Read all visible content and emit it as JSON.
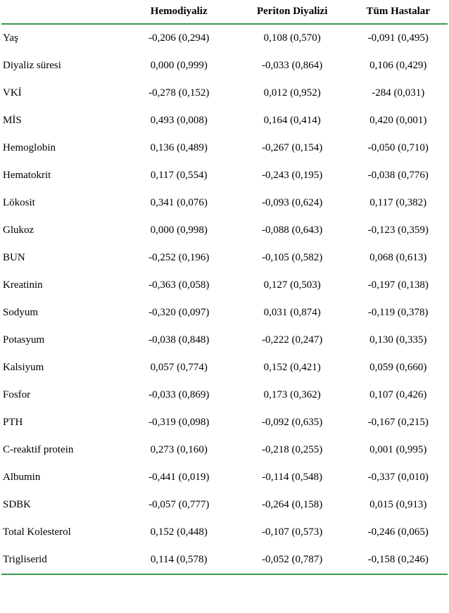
{
  "headers": {
    "col1": "Hemodiyaliz",
    "col2": "Periton Diyalizi",
    "col3": "Tüm Hastalar"
  },
  "rows": [
    {
      "label": "Yaş",
      "c1": "-0,206 (0,294)",
      "c2": "0,108 (0,570)",
      "c3": "-0,091 (0,495)"
    },
    {
      "label": "Diyaliz süresi",
      "c1": "0,000 (0,999)",
      "c2": "-0,033 (0,864)",
      "c3": "0,106 (0,429)"
    },
    {
      "label": "VKİ",
      "c1": "-0,278 (0,152)",
      "c2": "0,012 (0,952)",
      "c3": "-284 (0,031)"
    },
    {
      "label": "MİS",
      "c1": "0,493 (0,008)",
      "c2": "0,164 (0,414)",
      "c3": "0,420 (0,001)"
    },
    {
      "label": "Hemoglobin",
      "c1": "0,136 (0,489)",
      "c2": "-0,267 (0,154)",
      "c3": "-0,050 (0,710)"
    },
    {
      "label": "Hematokrit",
      "c1": "0,117 (0,554)",
      "c2": "-0,243 (0,195)",
      "c3": "-0,038 (0,776)"
    },
    {
      "label": "Lökosit",
      "c1": "0,341 (0,076)",
      "c2": "-0,093 (0,624)",
      "c3": "0,117 (0,382)"
    },
    {
      "label": "Glukoz",
      "c1": "0,000 (0,998)",
      "c2": "-0,088 (0,643)",
      "c3": "-0,123 (0,359)"
    },
    {
      "label": "BUN",
      "c1": "-0,252 (0,196)",
      "c2": "-0,105 (0,582)",
      "c3": "0,068 (0,613)"
    },
    {
      "label": "Kreatinin",
      "c1": "-0,363 (0,058)",
      "c2": "0,127 (0,503)",
      "c3": "-0,197 (0,138)"
    },
    {
      "label": "Sodyum",
      "c1": "-0,320 (0,097)",
      "c2": "0,031 (0,874)",
      "c3": "-0,119 (0,378)"
    },
    {
      "label": "Potasyum",
      "c1": "-0,038 (0,848)",
      "c2": "-0,222 (0,247)",
      "c3": "0,130 (0,335)"
    },
    {
      "label": "Kalsiyum",
      "c1": "0,057 (0,774)",
      "c2": "0,152 (0,421)",
      "c3": "0,059 (0,660)"
    },
    {
      "label": "Fosfor",
      "c1": "-0,033 (0,869)",
      "c2": "0,173 (0,362)",
      "c3": "0,107 (0,426)"
    },
    {
      "label": "PTH",
      "c1": "-0,319 (0,098)",
      "c2": "-0,092 (0,635)",
      "c3": "-0,167 (0,215)"
    },
    {
      "label": "C-reaktif protein",
      "c1": "0,273 (0,160)",
      "c2": "-0,218 (0,255)",
      "c3": "0,001 (0,995)"
    },
    {
      "label": "Albumin",
      "c1": "-0,441 (0,019)",
      "c2": "-0,114 (0,548)",
      "c3": "-0,337 (0,010)"
    },
    {
      "label": "SDBK",
      "c1": "-0,057 (0,777)",
      "c2": "-0,264 (0,158)",
      "c3": "0,015 (0,913)"
    },
    {
      "label": "Total Kolesterol",
      "c1": "0,152 (0,448)",
      "c2": "-0,107 (0,573)",
      "c3": "-0,246 (0,065)"
    },
    {
      "label": "Trigliserid",
      "c1": "0,114 (0,578)",
      "c2": "-0,052 (0,787)",
      "c3": "-0,158 (0,246)"
    }
  ]
}
